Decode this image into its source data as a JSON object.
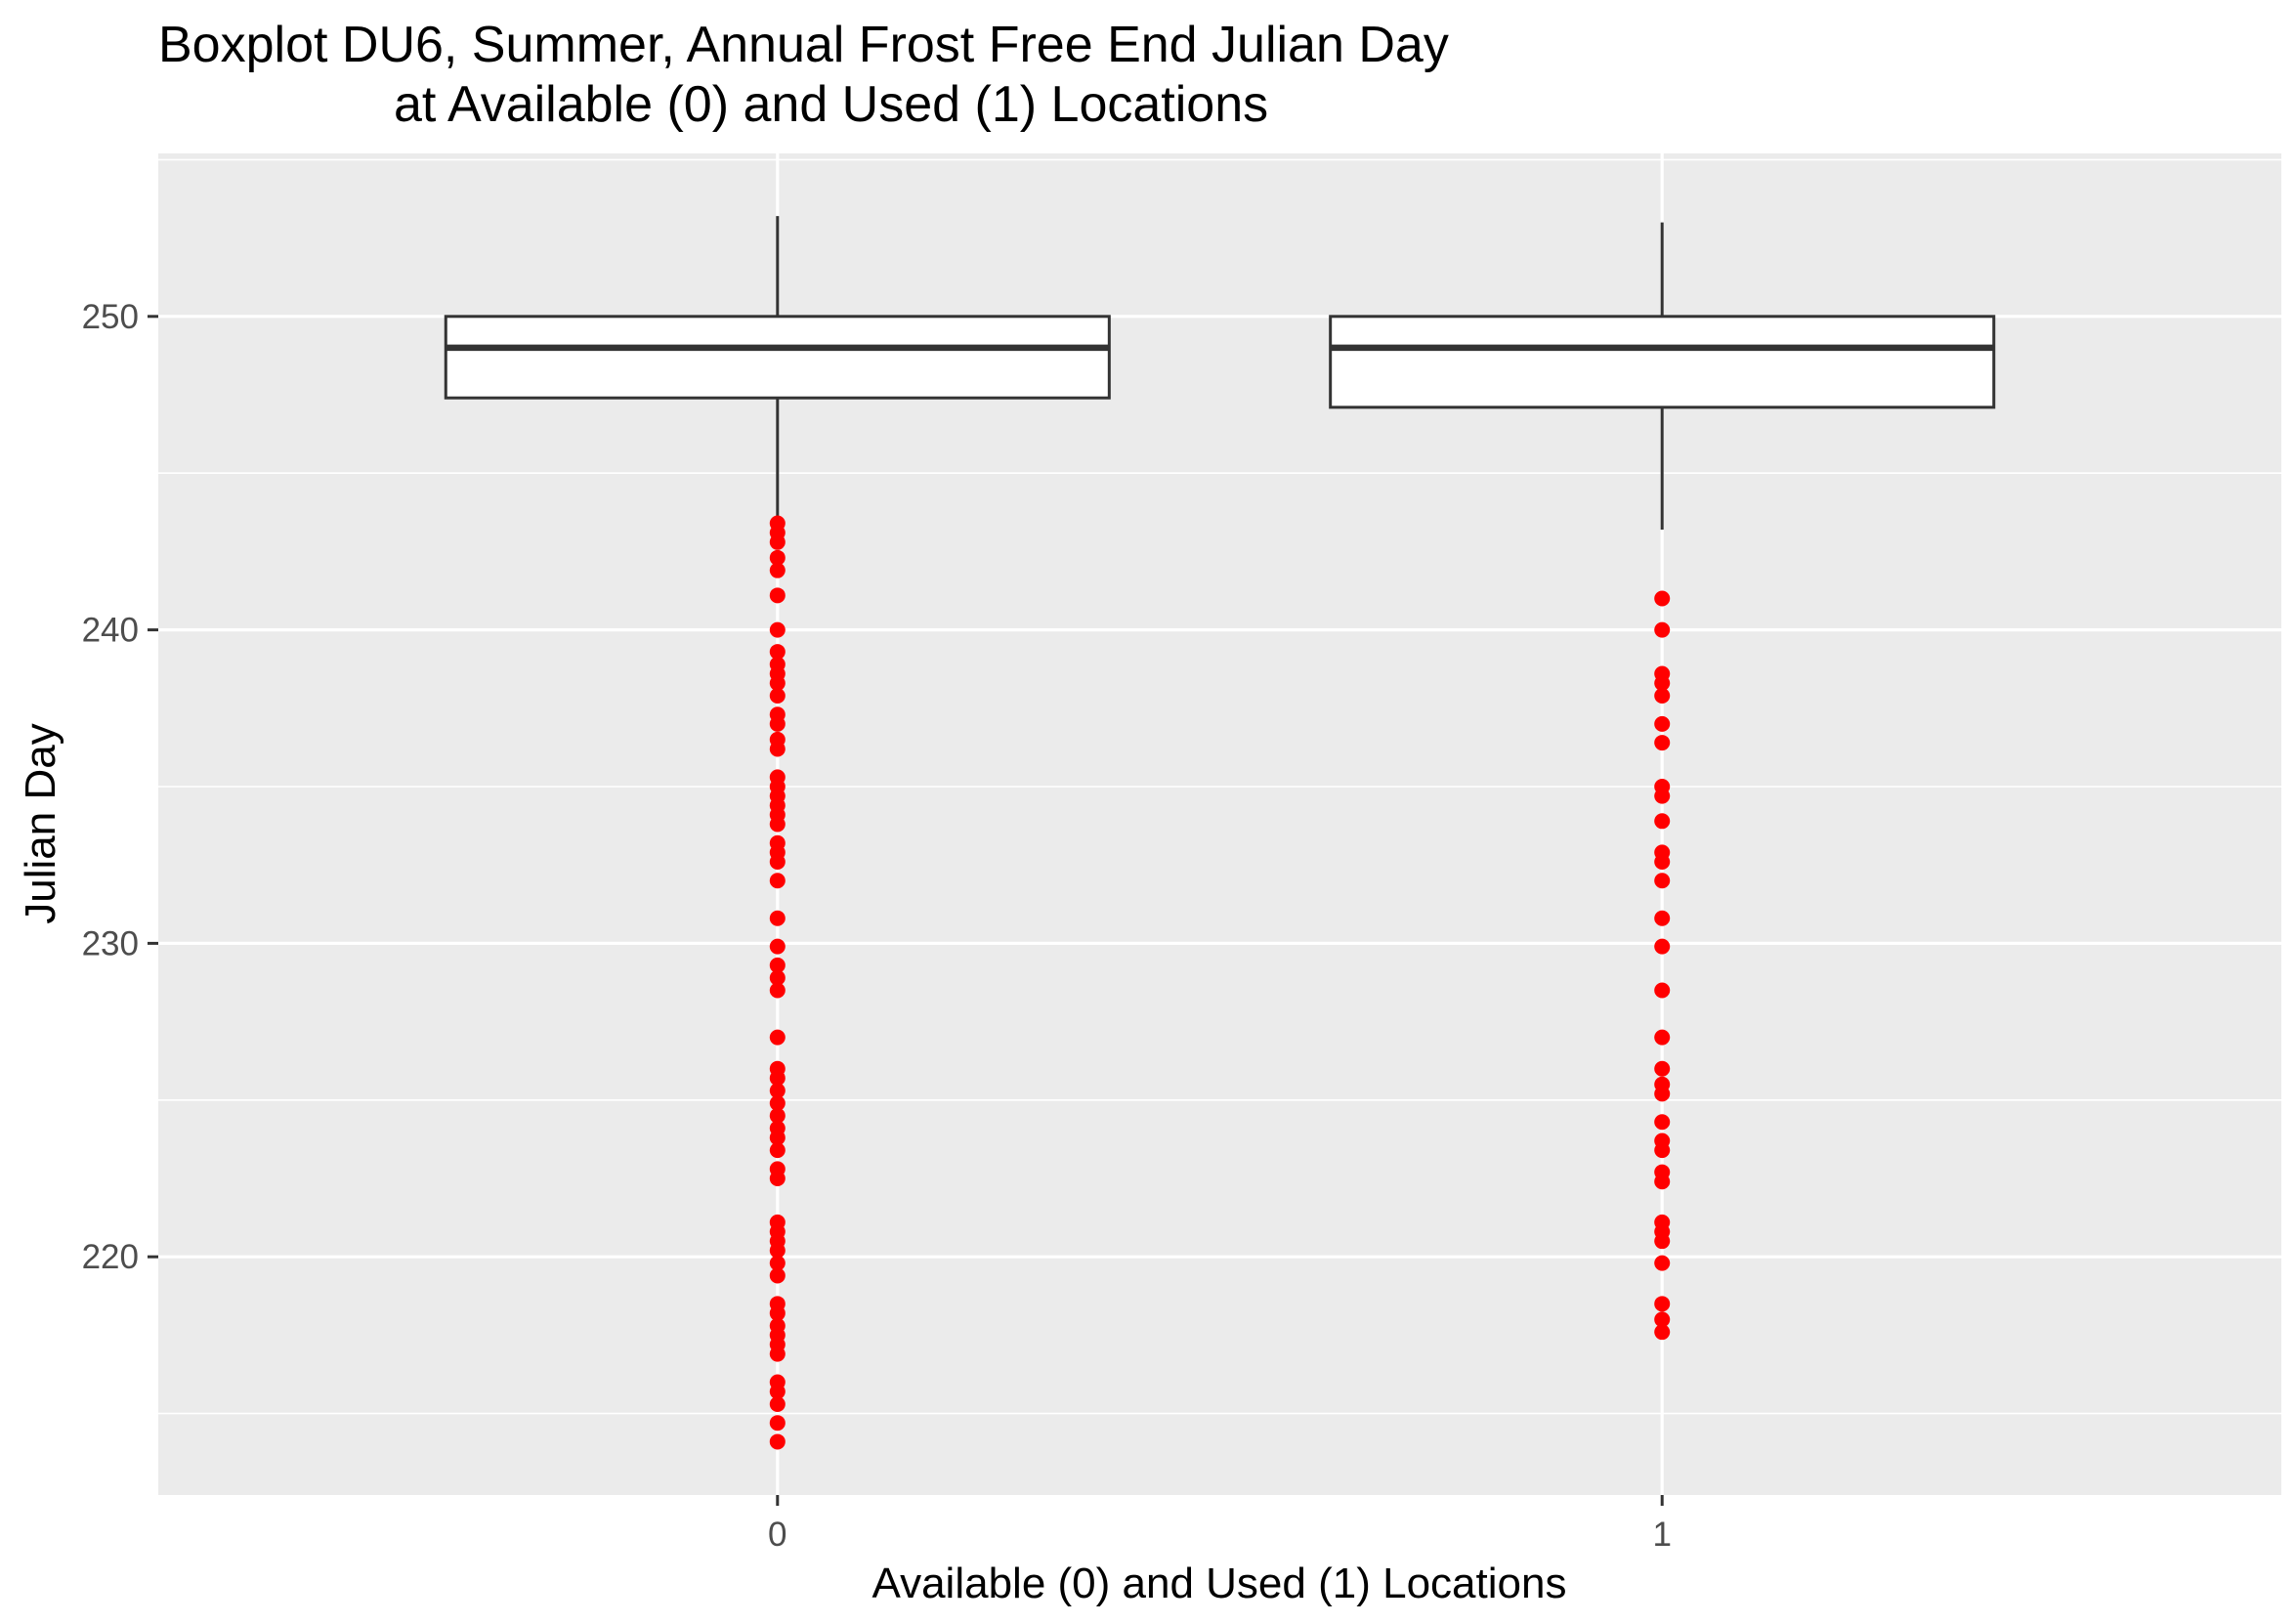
{
  "chart_data": {
    "type": "boxplot",
    "title": "Boxplot DU6, Summer, Annual Frost Free End Julian Day",
    "subtitle": "at Available (0) and Used (1) Locations",
    "xlabel": "Available (0) and Used (1) Locations",
    "ylabel": "Julian Day",
    "categories": [
      "0",
      "1"
    ],
    "y_ticks": [
      "220",
      "230",
      "240",
      "250"
    ],
    "ylim": [
      212.4,
      255.2
    ],
    "grid": true,
    "legend": "none",
    "colors": {
      "panel": "#ebebeb",
      "grid": "#ffffff",
      "box_fill": "#ffffff",
      "box_line": "#333333",
      "outlier": "#ff0000"
    },
    "boxes": [
      {
        "category": "0",
        "whisker_low": 243.5,
        "q1": 247.4,
        "median": 249.0,
        "q3": 250.0,
        "whisker_high": 253.2,
        "outliers": [
          243.4,
          243.1,
          242.8,
          242.3,
          241.9,
          241.1,
          240.0,
          239.3,
          238.9,
          238.6,
          238.3,
          237.9,
          237.3,
          237.0,
          236.5,
          236.2,
          235.3,
          235.0,
          234.7,
          234.4,
          234.1,
          233.8,
          233.2,
          232.9,
          232.6,
          232.0,
          230.8,
          229.9,
          229.3,
          228.9,
          228.5,
          227.0,
          226.0,
          225.7,
          225.3,
          224.9,
          224.5,
          224.1,
          223.8,
          223.4,
          222.8,
          222.5,
          221.1,
          220.8,
          220.5,
          220.2,
          219.8,
          219.4,
          218.5,
          218.2,
          217.8,
          217.5,
          217.2,
          216.9,
          216.0,
          215.7,
          215.3,
          214.7,
          214.1
        ]
      },
      {
        "category": "1",
        "whisker_low": 243.2,
        "q1": 247.1,
        "median": 249.0,
        "q3": 250.0,
        "whisker_high": 253.0,
        "outliers": [
          241.0,
          240.0,
          238.6,
          238.3,
          237.9,
          237.0,
          236.4,
          235.0,
          234.7,
          233.9,
          232.9,
          232.6,
          232.0,
          230.8,
          229.9,
          228.5,
          227.0,
          226.0,
          225.5,
          225.2,
          224.3,
          223.7,
          223.4,
          222.7,
          222.4,
          221.1,
          220.8,
          220.5,
          219.8,
          218.5,
          218.0,
          217.6
        ]
      }
    ]
  }
}
